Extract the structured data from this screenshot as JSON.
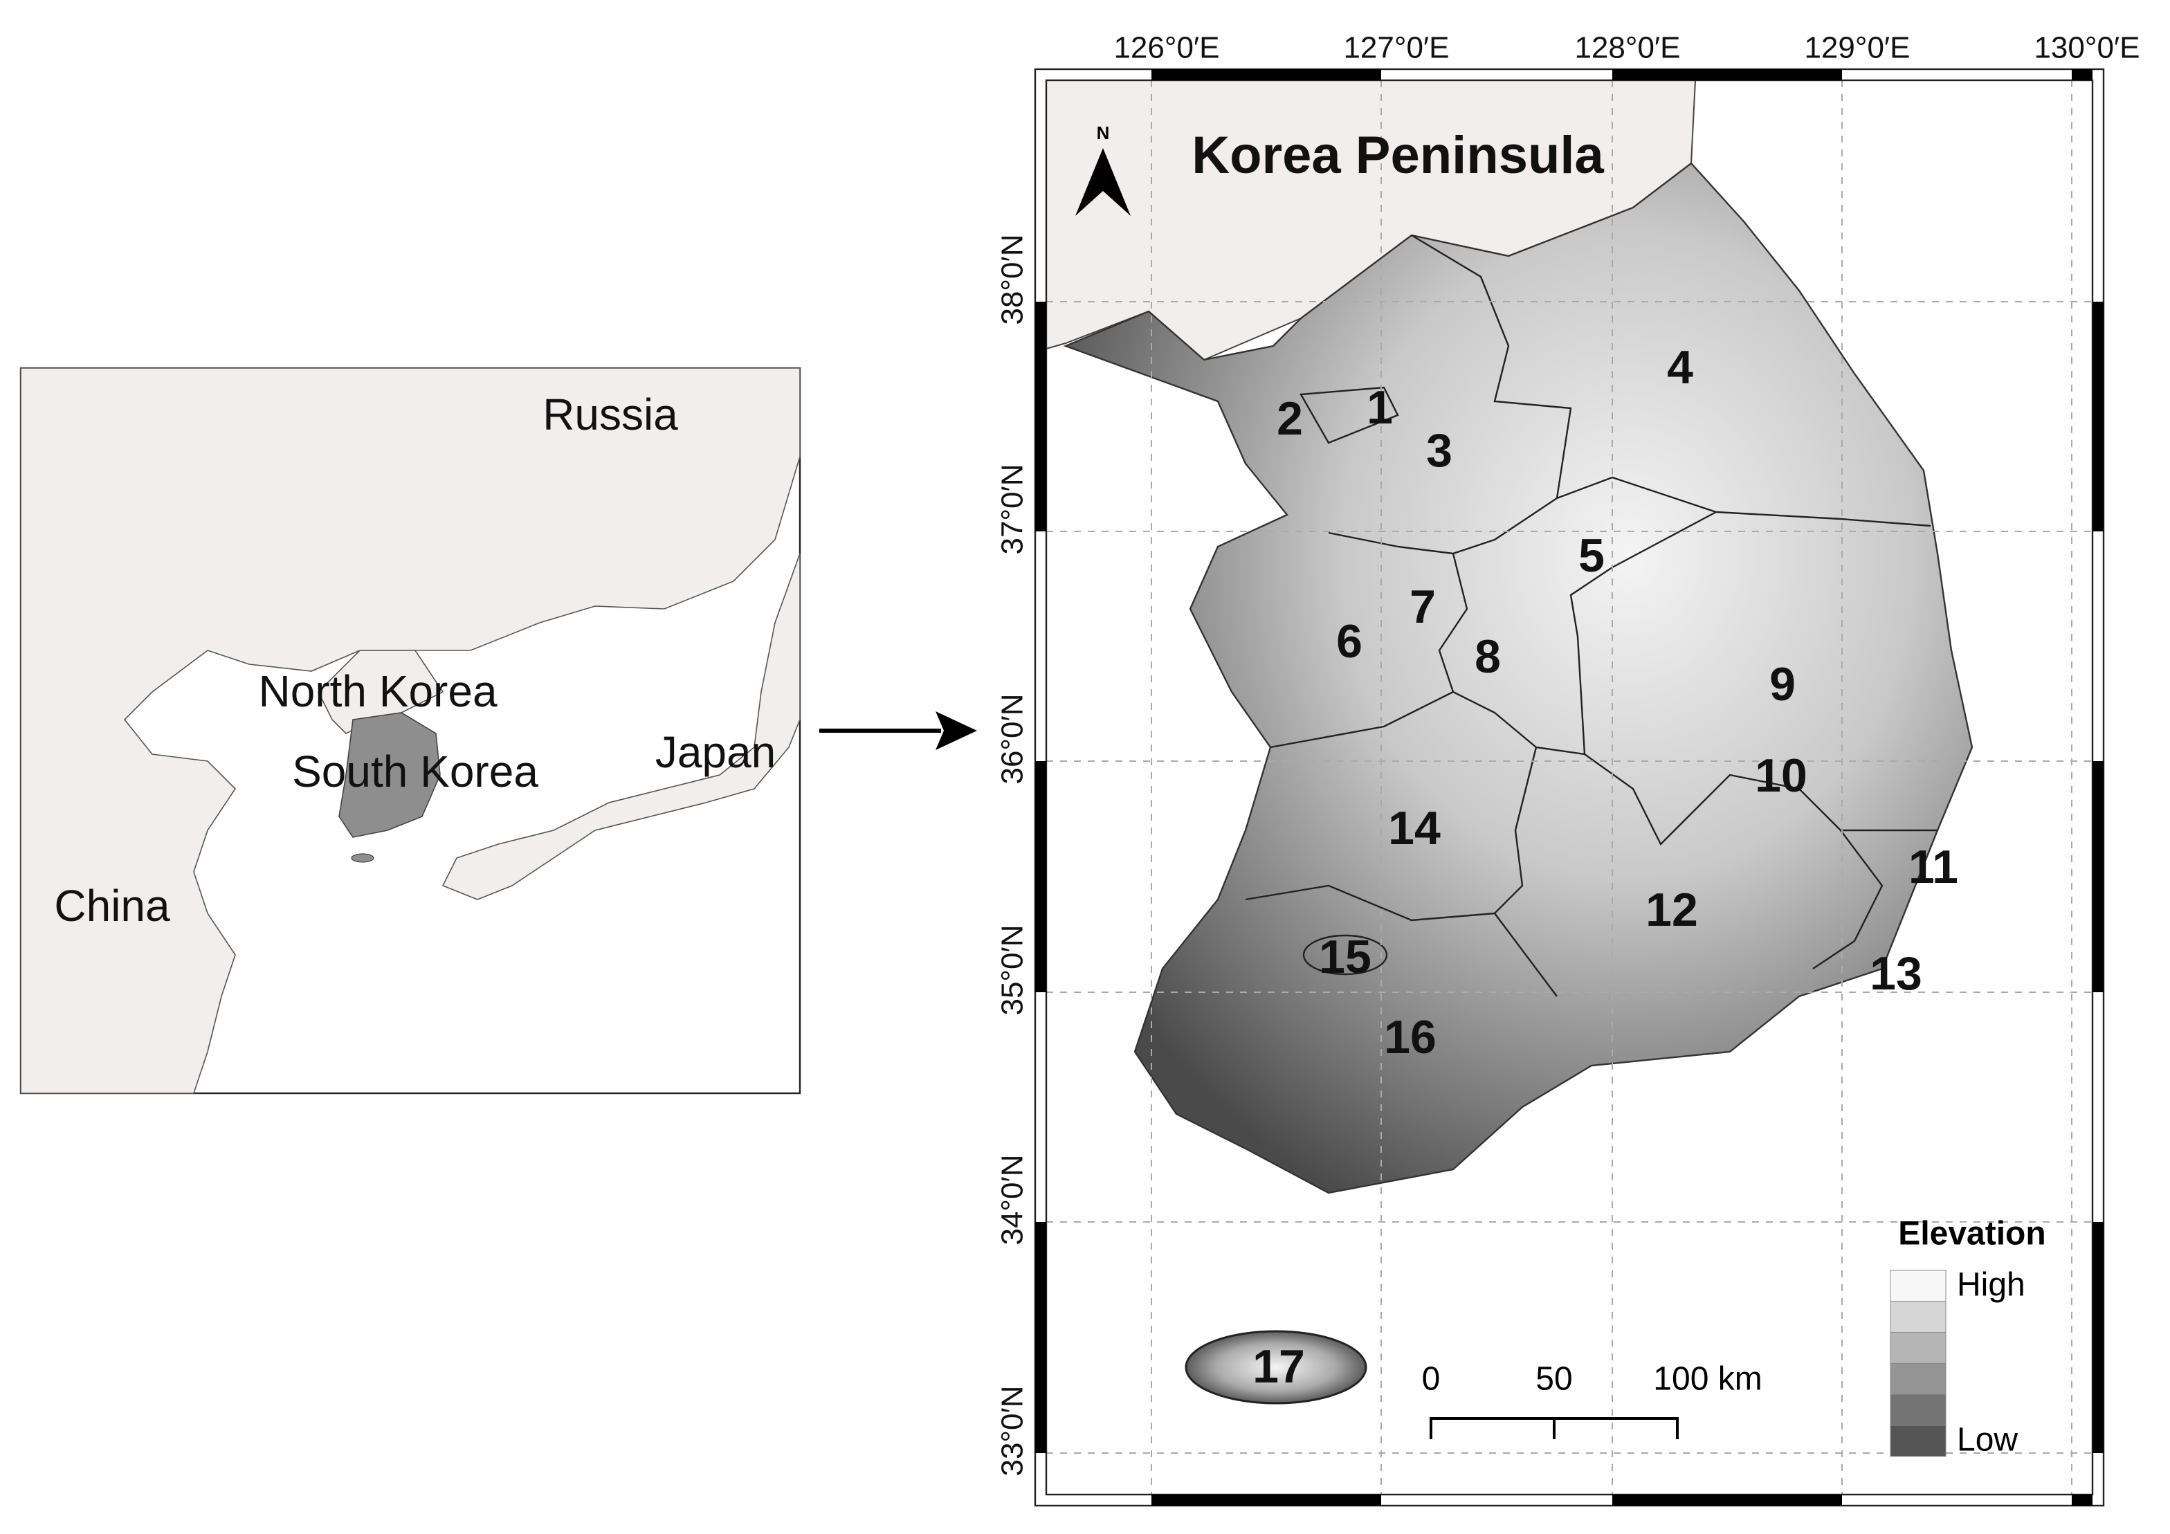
{
  "inset": {
    "labels": [
      "Russia",
      "North Korea",
      "South Korea",
      "Japan",
      "China"
    ]
  },
  "main": {
    "title": "Korea Peninsula",
    "north": "N",
    "lon_labels": [
      "126°0′E",
      "127°0′E",
      "128°0′E",
      "129°0′E",
      "130°0′E"
    ],
    "lat_labels": [
      "38°0′N",
      "37°0′N",
      "36°0′N",
      "35°0′N",
      "34°0′N",
      "33°0′N"
    ],
    "regions": [
      "1",
      "2",
      "3",
      "4",
      "5",
      "6",
      "7",
      "8",
      "9",
      "10",
      "11",
      "12",
      "13",
      "14",
      "15",
      "16",
      "17"
    ]
  },
  "legend": {
    "title": "Elevation",
    "high": "High",
    "low": "Low"
  },
  "scale_bar": {
    "labels": [
      "0",
      "50",
      "100 km"
    ]
  }
}
